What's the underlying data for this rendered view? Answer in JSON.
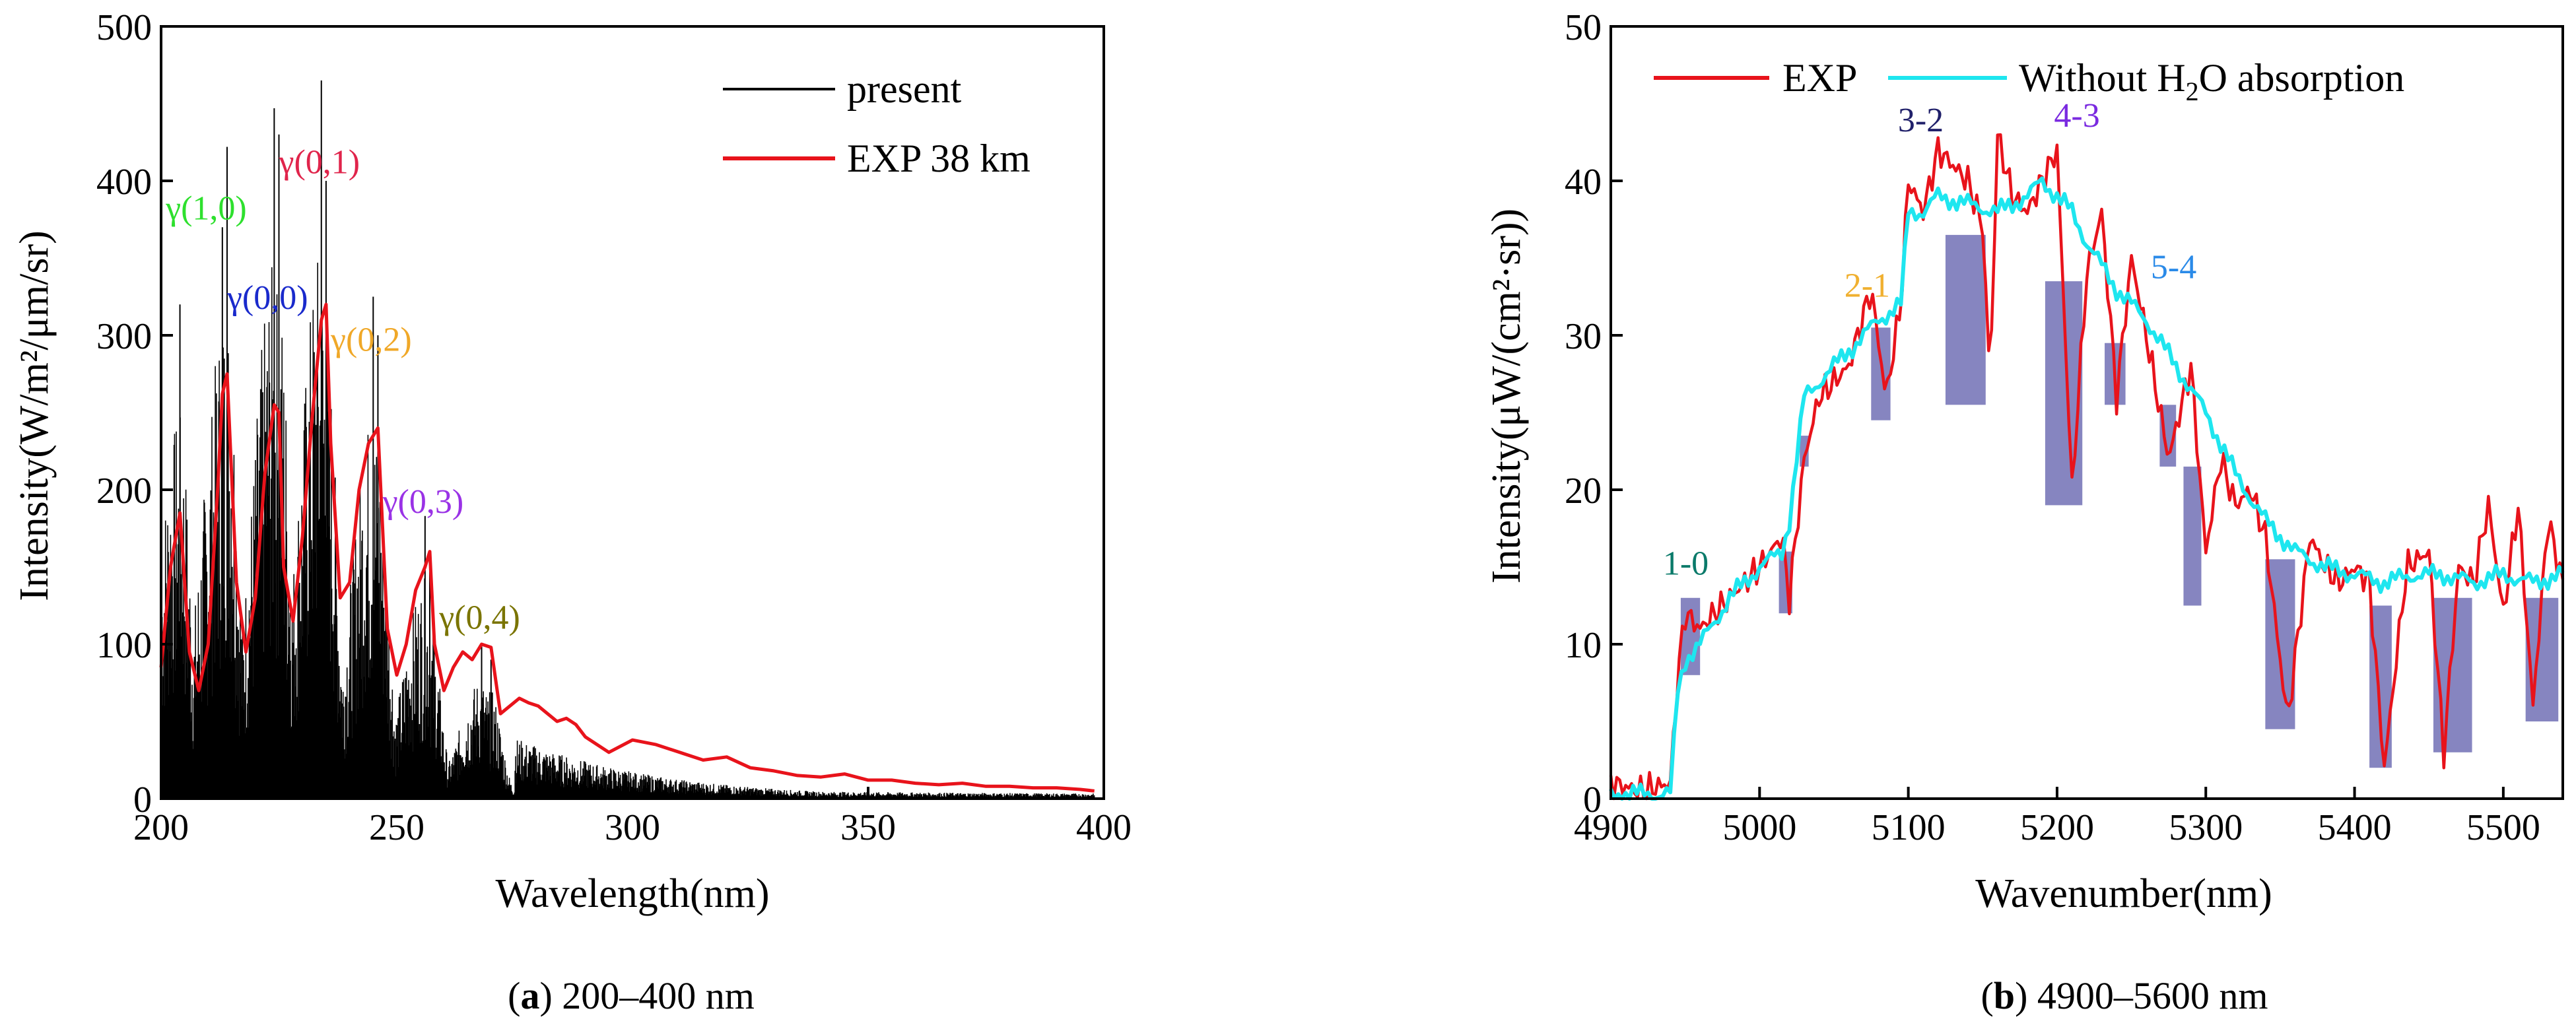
{
  "colors": {
    "exp": "#e8131b",
    "present": "#000000",
    "without_h2o": "#1ee6ef",
    "band": "#3b3a9a"
  },
  "chart_data": [
    {
      "type": "line",
      "panel": "a",
      "caption_letter": "a",
      "caption_text": " 200–400 nm",
      "xlabel": "Wavelength(nm)",
      "ylabel": "Intensity(W/m²/μm/sr)",
      "xlim": [
        200,
        400
      ],
      "ylim": [
        0,
        500
      ],
      "xticks": [
        "200",
        "250",
        "300",
        "350",
        "400"
      ],
      "yticks": [
        "0",
        "100",
        "200",
        "300",
        "400",
        "500"
      ],
      "legend": [
        "present",
        "EXP 38 km"
      ],
      "legend_position": "top-right",
      "series": [
        {
          "name": "EXP 38 km",
          "x": [
            200,
            202,
            204,
            206,
            208,
            210,
            212,
            213,
            214,
            216,
            218,
            220,
            222,
            224,
            225,
            226,
            228,
            230,
            232,
            234,
            235,
            236,
            238,
            240,
            242,
            244,
            246,
            248,
            250,
            252,
            254,
            256,
            257,
            258,
            260,
            262,
            264,
            266,
            268,
            270,
            272,
            274,
            276,
            278,
            280,
            282,
            284,
            286,
            288,
            290,
            295,
            300,
            305,
            310,
            315,
            320,
            325,
            330,
            335,
            340,
            345,
            350,
            355,
            360,
            365,
            370,
            375,
            380,
            385,
            390,
            395,
            398
          ],
          "y": [
            85,
            150,
            185,
            95,
            70,
            100,
            200,
            262,
            275,
            140,
            95,
            130,
            210,
            255,
            250,
            150,
            115,
            170,
            245,
            310,
            320,
            230,
            130,
            140,
            200,
            230,
            240,
            110,
            80,
            100,
            135,
            150,
            160,
            100,
            70,
            85,
            95,
            90,
            100,
            98,
            55,
            60,
            65,
            62,
            60,
            55,
            50,
            52,
            48,
            40,
            30,
            38,
            35,
            30,
            25,
            27,
            20,
            18,
            15,
            14,
            16,
            12,
            12,
            10,
            9,
            10,
            8,
            8,
            7,
            7,
            6,
            5
          ]
        },
        {
          "name": "present",
          "type": "spectral-lines",
          "peaks": [
            {
              "x": 204,
              "y": 320
            },
            {
              "x": 213,
              "y": 370
            },
            {
              "x": 214,
              "y": 422
            },
            {
              "x": 224,
              "y": 447
            },
            {
              "x": 225,
              "y": 430
            },
            {
              "x": 234,
              "y": 465
            },
            {
              "x": 235,
              "y": 400
            },
            {
              "x": 245,
              "y": 325
            },
            {
              "x": 246,
              "y": 300
            },
            {
              "x": 256,
              "y": 183
            },
            {
              "x": 257,
              "y": 150
            },
            {
              "x": 268,
              "y": 100
            },
            {
              "x": 270,
              "y": 90
            }
          ]
        }
      ],
      "annotations": [
        {
          "text": "γ(1,0)",
          "x": 201,
          "y": 375,
          "color": "#2ee02e"
        },
        {
          "text": "γ(0,1)",
          "x": 225,
          "y": 405,
          "color": "#e0244b"
        },
        {
          "text": "γ(0,0)",
          "x": 214,
          "y": 317,
          "color": "#1a2acc"
        },
        {
          "text": "γ(0,2)",
          "x": 236,
          "y": 290,
          "color": "#f0a828"
        },
        {
          "text": "γ(0,3)",
          "x": 247,
          "y": 185,
          "color": "#9a32e6"
        },
        {
          "text": "γ(0,4)",
          "x": 259,
          "y": 110,
          "color": "#7a7400"
        }
      ]
    },
    {
      "type": "line",
      "panel": "b",
      "caption_letter": "b",
      "caption_text": " 4900–5600 nm",
      "xlabel": "Wavenumber(nm)",
      "ylabel": "Intensity(μW/(cm²·sr))",
      "xlim": [
        4900,
        5540
      ],
      "ylim": [
        0,
        50
      ],
      "xticks": [
        "4900",
        "5000",
        "5100",
        "5200",
        "5300",
        "5400",
        "5500"
      ],
      "yticks": [
        "0",
        "10",
        "20",
        "30",
        "40",
        "50"
      ],
      "legend": [
        "EXP",
        "Without H",
        "2",
        "O absorption"
      ],
      "legend_position": "top",
      "series": [
        {
          "name": "EXP",
          "x": [
            4900,
            4920,
            4940,
            4945,
            4950,
            4960,
            4980,
            5000,
            5015,
            5020,
            5030,
            5040,
            5060,
            5075,
            5085,
            5095,
            5100,
            5110,
            5120,
            5130,
            5140,
            5150,
            5155,
            5160,
            5170,
            5180,
            5190,
            5200,
            5210,
            5220,
            5230,
            5240,
            5250,
            5260,
            5275,
            5290,
            5300,
            5310,
            5320,
            5330,
            5340,
            5355,
            5370,
            5380,
            5390,
            5400,
            5410,
            5420,
            5435,
            5450,
            5460,
            5470,
            5480,
            5490,
            5500,
            5510,
            5520,
            5530,
            5540
          ],
          "y": [
            1,
            0.5,
            1,
            8,
            12,
            11,
            13,
            15,
            17,
            13,
            22,
            26,
            28,
            33,
            26,
            32,
            40,
            38,
            42,
            41,
            40,
            37,
            27,
            43,
            39,
            38,
            40,
            42,
            20,
            34,
            38,
            26,
            35,
            30,
            22,
            28,
            16,
            22,
            19,
            20,
            17,
            5,
            17,
            15,
            14,
            15,
            14,
            2,
            15,
            16,
            3,
            15,
            14,
            19,
            12,
            19,
            6,
            18,
            14
          ]
        },
        {
          "name": "Without H2O absorption",
          "x": [
            4900,
            4920,
            4940,
            4945,
            4950,
            4960,
            4980,
            5000,
            5015,
            5020,
            5030,
            5040,
            5060,
            5080,
            5095,
            5100,
            5110,
            5120,
            5140,
            5160,
            5180,
            5190,
            5200,
            5210,
            5220,
            5240,
            5260,
            5280,
            5300,
            5320,
            5340,
            5360,
            5380,
            5400,
            5420,
            5440,
            5460,
            5480,
            5500,
            5520,
            5540
          ],
          "y": [
            0.3,
            0.3,
            0.3,
            7,
            9,
            10,
            13,
            15,
            16,
            18,
            26,
            27,
            29,
            31,
            32,
            38,
            38,
            39,
            38.5,
            38,
            39,
            40,
            39,
            38,
            36,
            33,
            31,
            28,
            25,
            21,
            18,
            16,
            15,
            14.5,
            14,
            14.5,
            14.5,
            14,
            14.5,
            14,
            14.5
          ]
        }
      ],
      "absorption_bands": [
        {
          "x0": 4947,
          "x1": 4960,
          "y0": 8,
          "y1": 13
        },
        {
          "x0": 5013,
          "x1": 5022,
          "y0": 12,
          "y1": 16
        },
        {
          "x0": 5027,
          "x1": 5033,
          "y0": 21.5,
          "y1": 23.5
        },
        {
          "x0": 5075,
          "x1": 5088,
          "y0": 24.5,
          "y1": 30.5
        },
        {
          "x0": 5125,
          "x1": 5152,
          "y0": 25.5,
          "y1": 36.5
        },
        {
          "x0": 5192,
          "x1": 5217,
          "y0": 19,
          "y1": 33.5
        },
        {
          "x0": 5232,
          "x1": 5246,
          "y0": 25.5,
          "y1": 29.5
        },
        {
          "x0": 5269,
          "x1": 5280,
          "y0": 21.5,
          "y1": 25.5
        },
        {
          "x0": 5285,
          "x1": 5297,
          "y0": 12.5,
          "y1": 21.5
        },
        {
          "x0": 5340,
          "x1": 5360,
          "y0": 4.5,
          "y1": 15.5
        },
        {
          "x0": 5410,
          "x1": 5425,
          "y0": 2,
          "y1": 12.5
        },
        {
          "x0": 5453,
          "x1": 5479,
          "y0": 3,
          "y1": 13
        },
        {
          "x0": 5515,
          "x1": 5537,
          "y0": 5,
          "y1": 13
        }
      ],
      "annotations": [
        {
          "text": "1-0",
          "x": 4935,
          "y": 14.5,
          "color": "#0a7a6a"
        },
        {
          "text": "2-1",
          "x": 5057,
          "y": 32.5,
          "color": "#f0b030"
        },
        {
          "text": "3-2",
          "x": 5093,
          "y": 43.2,
          "color": "#20206a"
        },
        {
          "text": "4-3",
          "x": 5198,
          "y": 43.5,
          "color": "#7a2ae0"
        },
        {
          "text": "5-4",
          "x": 5263,
          "y": 33.7,
          "color": "#2a8ae8"
        }
      ]
    }
  ]
}
